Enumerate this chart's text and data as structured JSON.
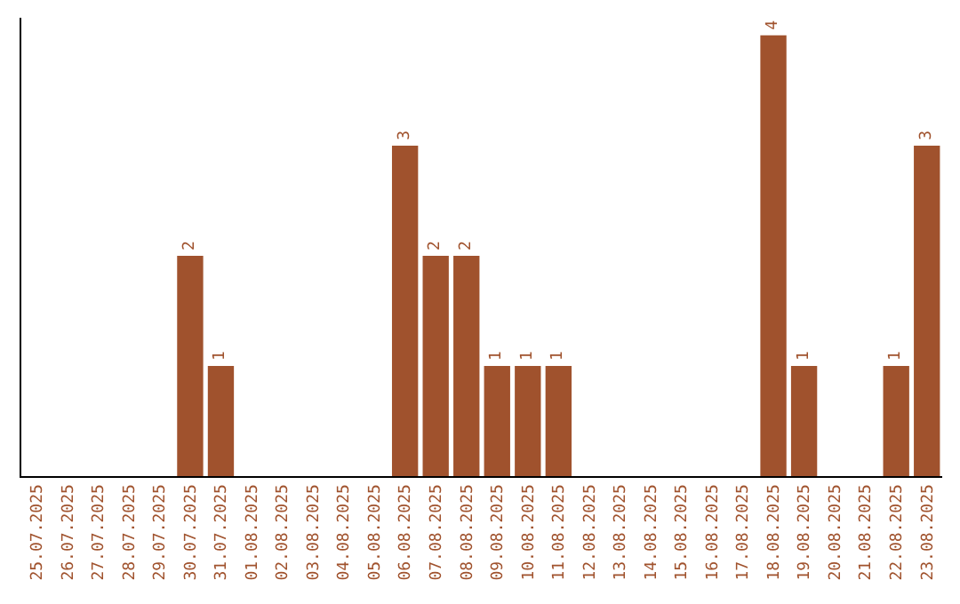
{
  "chart_data": {
    "type": "bar",
    "categories": [
      "25.07.2025",
      "26.07.2025",
      "27.07.2025",
      "28.07.2025",
      "29.07.2025",
      "30.07.2025",
      "31.07.2025",
      "01.08.2025",
      "02.08.2025",
      "03.08.2025",
      "04.08.2025",
      "05.08.2025",
      "06.08.2025",
      "07.08.2025",
      "08.08.2025",
      "09.08.2025",
      "10.08.2025",
      "11.08.2025",
      "12.08.2025",
      "13.08.2025",
      "14.08.2025",
      "15.08.2025",
      "16.08.2025",
      "17.08.2025",
      "18.08.2025",
      "19.08.2025",
      "20.08.2025",
      "21.08.2025",
      "22.08.2025",
      "23.08.2025"
    ],
    "values": [
      0,
      0,
      0,
      0,
      0,
      2,
      1,
      0,
      0,
      0,
      0,
      0,
      3,
      2,
      2,
      1,
      1,
      1,
      0,
      0,
      0,
      0,
      0,
      0,
      4,
      1,
      0,
      0,
      1,
      3
    ],
    "value_labels": [
      null,
      null,
      null,
      null,
      null,
      "2",
      "1",
      null,
      null,
      null,
      null,
      null,
      "3",
      "2",
      "2",
      "1",
      "1",
      "1",
      null,
      null,
      null,
      null,
      null,
      null,
      "4",
      "1",
      null,
      null,
      "1",
      "3"
    ],
    "color": "#a0522d",
    "grid": false,
    "tick_labels": "x"
  }
}
